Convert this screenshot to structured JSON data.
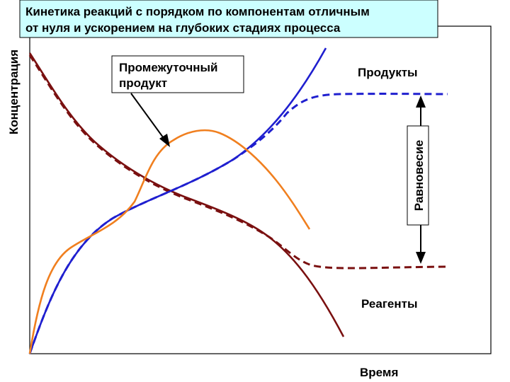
{
  "title_line1": "Кинетика реакций с порядком по компонентам отличным",
  "title_line2": "от нуля и ускорением на глубоких стадиях процесса",
  "y_axis_label": "Концентрация",
  "x_axis_label": "Время",
  "intermediate_label_line1": "Промежуточный",
  "intermediate_label_line2": "продукт",
  "products_label": "Продукты",
  "reagents_label": "Реагенты",
  "equilibrium_label": "Равновесие",
  "colors": {
    "frame": "#000000",
    "title_bg": "#ccffff",
    "products": "#1f1fcf",
    "reagents": "#7a1010",
    "intermediate": "#f07f1f",
    "arrow": "#000000"
  }
}
